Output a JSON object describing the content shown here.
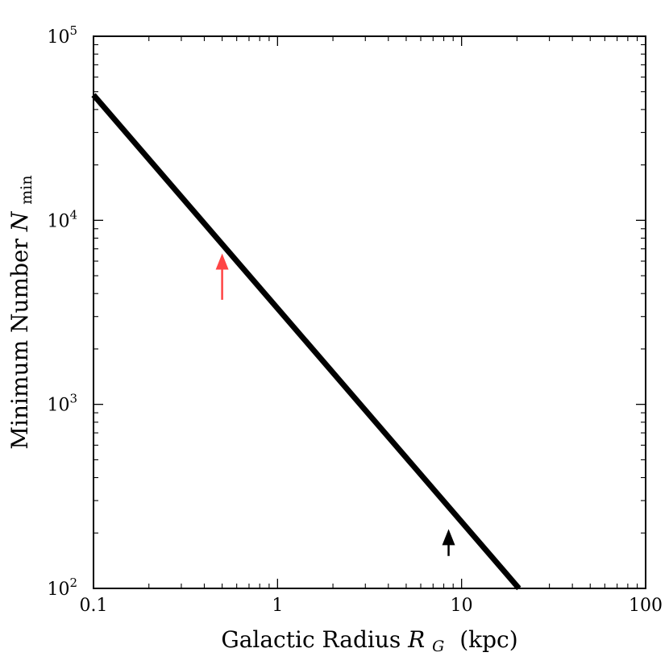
{
  "chart_data": {
    "type": "line",
    "xscale": "log",
    "yscale": "log",
    "xlim": [
      0.1,
      100
    ],
    "ylim": [
      100,
      100000
    ],
    "xlabel": {
      "prefix": "Galactic Radius ",
      "symbol": "R",
      "subscript": "G",
      "unit": "(kpc)"
    },
    "ylabel": {
      "prefix": "Minimum Number ",
      "symbol": "N",
      "subscript": "min"
    },
    "xticks": [
      {
        "value": 0.1,
        "label": "0.1"
      },
      {
        "value": 1,
        "label": "1"
      },
      {
        "value": 10,
        "label": "10"
      },
      {
        "value": 100,
        "label": "100"
      }
    ],
    "yticks": [
      {
        "value": 100,
        "base": "10",
        "exp": "2"
      },
      {
        "value": 1000,
        "base": "10",
        "exp": "3"
      },
      {
        "value": 10000,
        "base": "10",
        "exp": "4"
      },
      {
        "value": 100000,
        "base": "10",
        "exp": "5"
      }
    ],
    "series": [
      {
        "x": [
          0.1,
          20.5
        ],
        "y": [
          48000,
          100
        ],
        "color": "#000000"
      }
    ],
    "annotations": [
      {
        "type": "arrow",
        "x": 0.5,
        "y_from": 3700,
        "y_to": 6600,
        "color": "#ff4444"
      },
      {
        "type": "arrow",
        "x": 8.5,
        "y_from": 150,
        "y_to": 210,
        "color": "#000000"
      }
    ],
    "grid": false
  }
}
